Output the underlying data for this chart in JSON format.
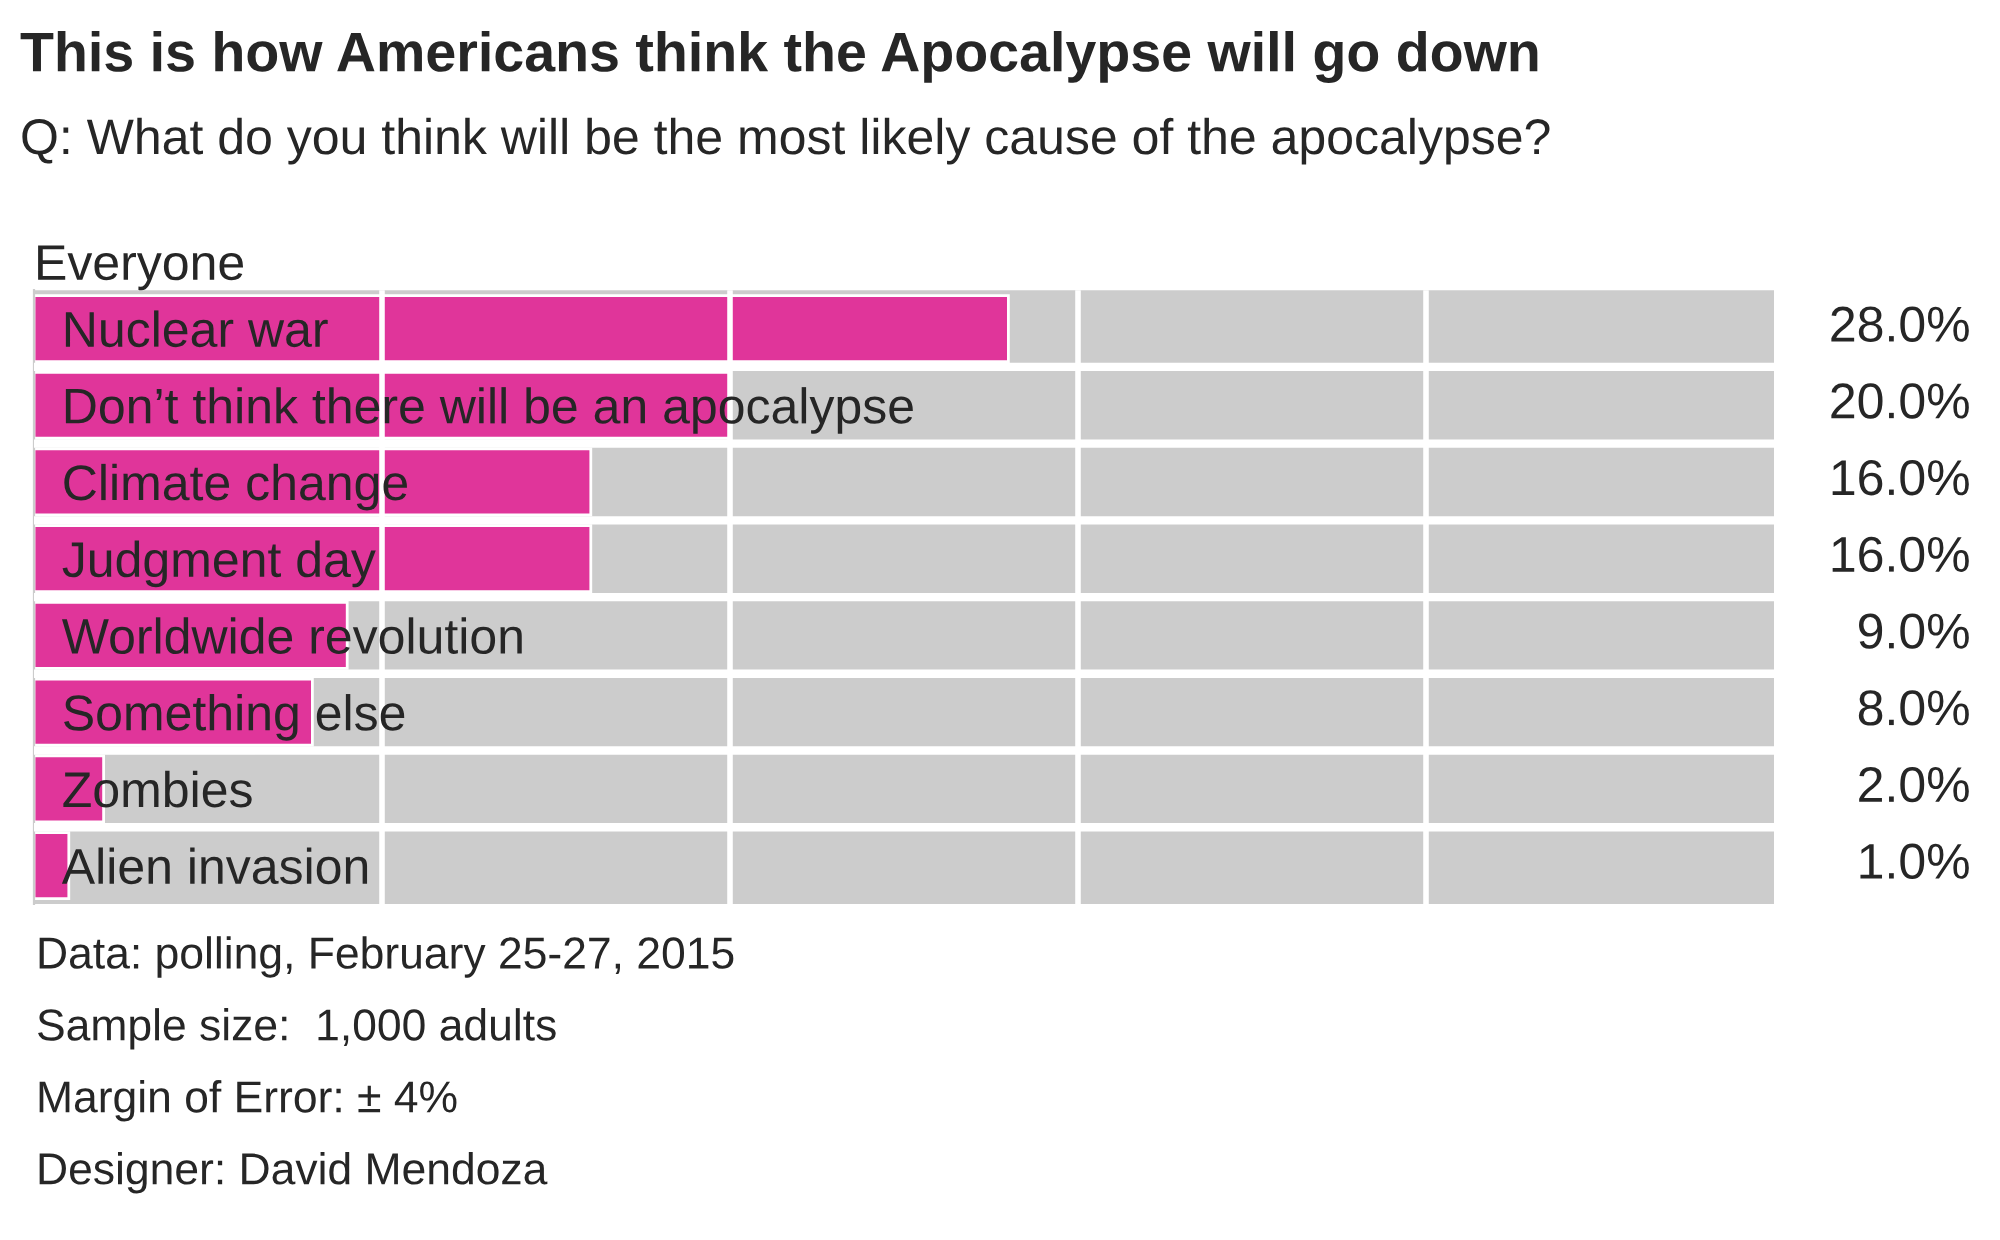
{
  "chart_data": {
    "type": "bar",
    "orientation": "horizontal",
    "title": "This is how Americans think the Apocalypse will go down",
    "subtitle": "Q: What do you think will be the most likely cause of the apocalypse?",
    "ylabel": "Everyone",
    "categories": [
      "Nuclear war",
      "Don’t think there will be an apocalypse",
      "Climate change",
      "Judgment day",
      "Worldwide revolution",
      "Something else",
      "Zombies",
      "Alien invasion"
    ],
    "values": [
      28.0,
      20.0,
      16.0,
      16.0,
      9.0,
      8.0,
      2.0,
      1.0
    ],
    "color": "#e0359a",
    "value_labels": [
      "28.0%",
      "20.0%",
      "16.0%",
      "16.0%",
      "9.0%",
      "8.0%",
      "2.0%",
      "1.0%"
    ],
    "xlim": [
      0,
      50
    ],
    "xticks": [
      {
        "value": 10,
        "label": null
      },
      {
        "value": 20,
        "label": null
      },
      {
        "value": 30,
        "label": null
      },
      {
        "value": 40,
        "label": null
      }
    ],
    "tick_labels": "y",
    "grid": "x",
    "annotations": [
      "Data: polling, February 25-27, 2015",
      "Sample size:  1,000 adults",
      "Margin of Error: ± 4%",
      "Designer: David Mendoza"
    ]
  }
}
